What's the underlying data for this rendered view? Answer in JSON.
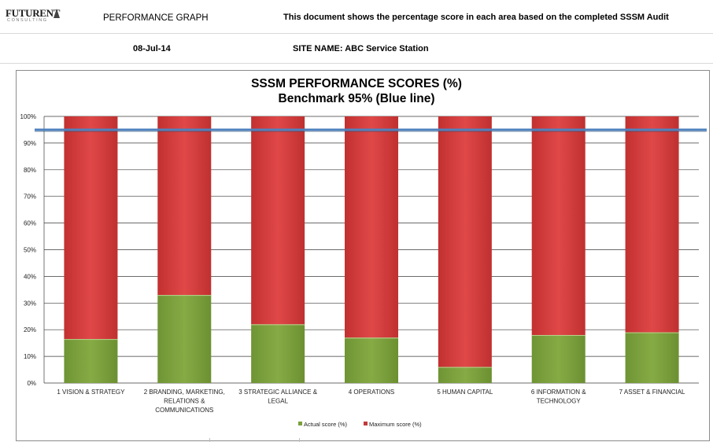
{
  "header": {
    "logo_text": "FUTURENT",
    "logo_sub": "CONSULTING",
    "page_label": "PERFORMANCE GRAPH",
    "description": "This document shows the percentage score in each area based on the completed SSSM Audit",
    "date": "08-Jul-14",
    "site_name": "SITE NAME: ABC Service Station"
  },
  "colors": {
    "actual": "#7ba03c",
    "maximum": "#d33f3f",
    "benchmark": "#4f81bd"
  },
  "chart_data": {
    "type": "bar",
    "stacked": true,
    "title": "SSSM PERFORMANCE SCORES (%)",
    "subtitle": "Benchmark 95% (Blue line)",
    "categories": [
      [
        "1 VISION & STRATEGY"
      ],
      [
        "2 BRANDING, MARKETING,",
        "RELATIONS &",
        "COMMUNICATIONS"
      ],
      [
        "3 STRATEGIC ALLIANCE &",
        "LEGAL"
      ],
      [
        "4 OPERATIONS"
      ],
      [
        "5 HUMAN CAPITAL"
      ],
      [
        "6 INFORMATION &",
        "TECHNOLOGY"
      ],
      [
        "7 ASSET & FINANCIAL"
      ]
    ],
    "series": [
      {
        "name": "Actual score (%)",
        "values": [
          16.5,
          33,
          22,
          17,
          6,
          18,
          19
        ]
      },
      {
        "name": "Maximum score (%)",
        "values": [
          83.5,
          67,
          78,
          83,
          94,
          82,
          81
        ]
      }
    ],
    "benchmark": 95,
    "ylim": [
      0,
      100
    ],
    "yticks": [
      "0%",
      "10%",
      "20%",
      "30%",
      "40%",
      "50%",
      "60%",
      "70%",
      "80%",
      "90%",
      "100%"
    ],
    "grid": true,
    "legend": "bottom-center"
  }
}
